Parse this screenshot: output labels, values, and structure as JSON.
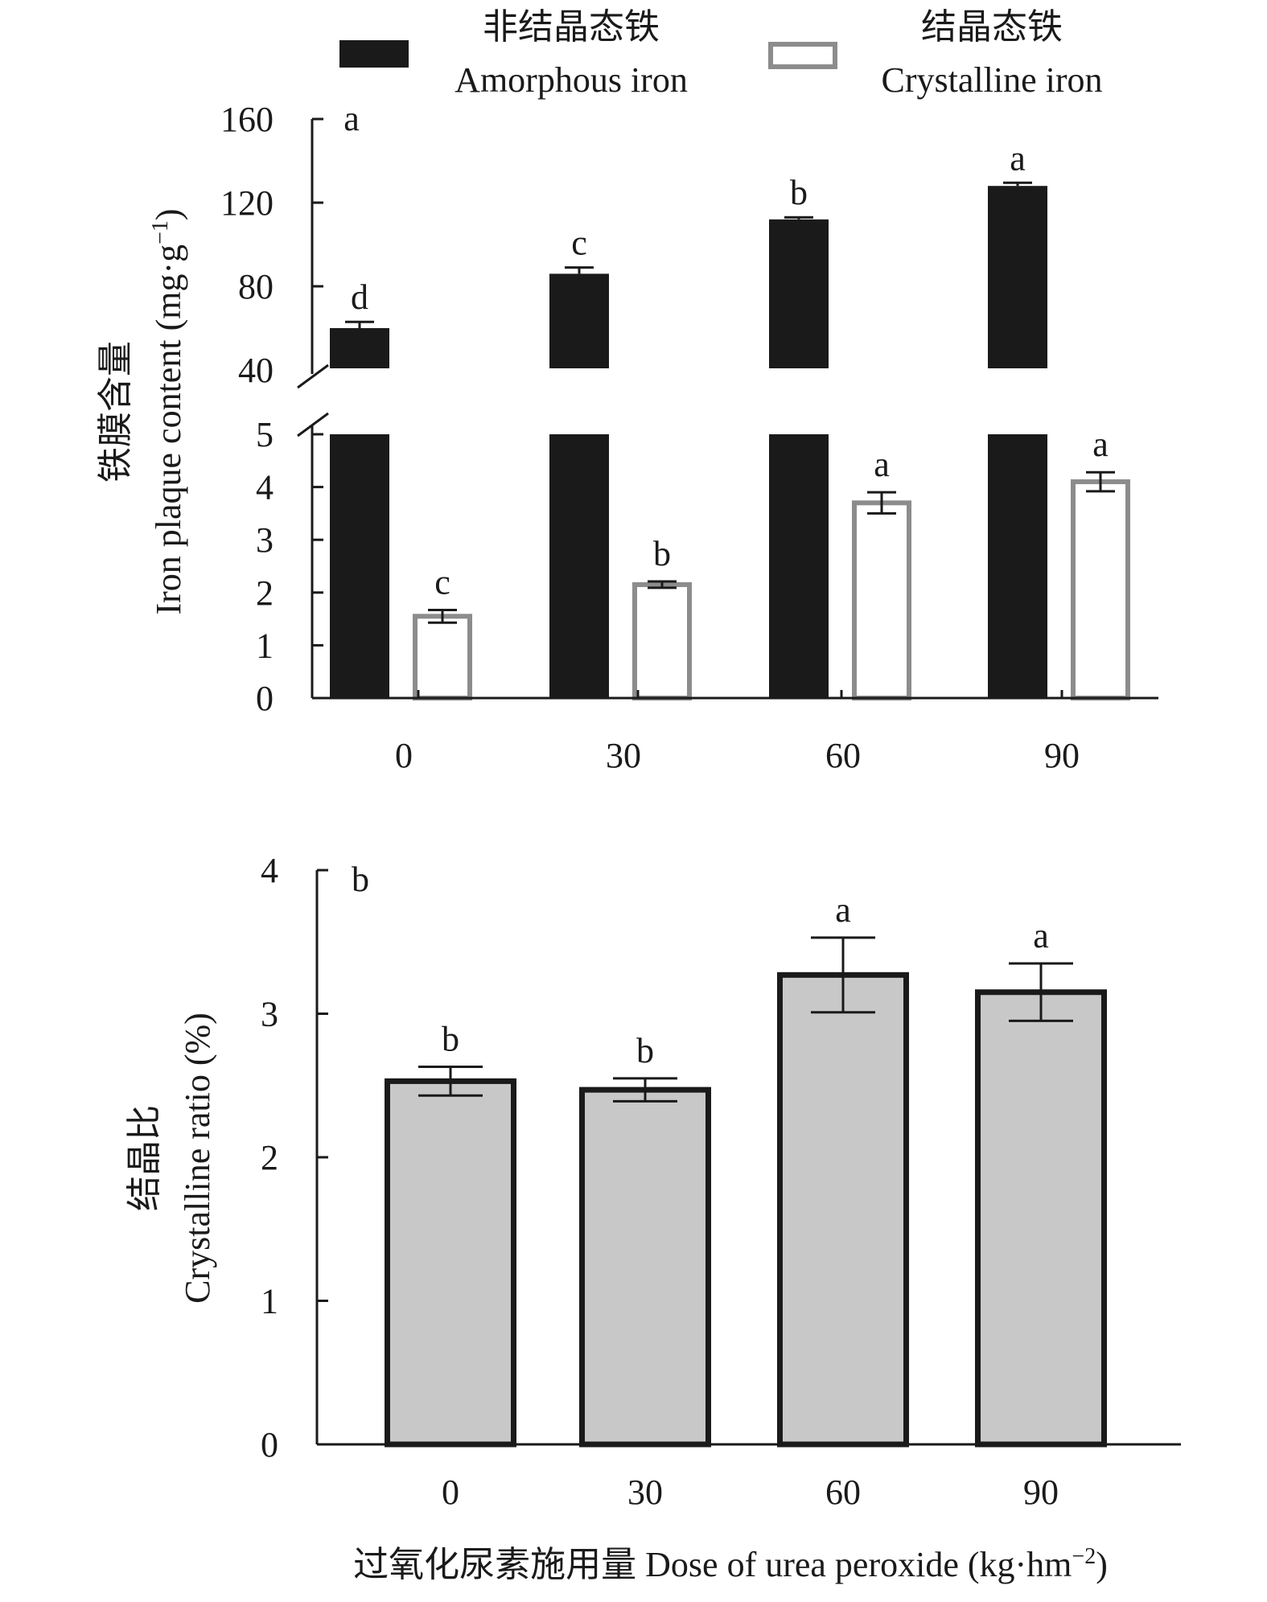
{
  "legend": [
    {
      "name_cn": "非结晶态铁",
      "name_en": "Amorphous iron",
      "fill": "#1a1a1a",
      "stroke": "#1a1a1a"
    },
    {
      "name_cn": "结晶态铁",
      "name_en": "Crystalline iron",
      "fill": "#ffffff",
      "stroke": "#8c8c8c"
    }
  ],
  "chart_data": [
    {
      "type": "bar",
      "panel_label": "a",
      "categories": [
        "0",
        "30",
        "60",
        "90"
      ],
      "ylabel_cn": "铁膜含量",
      "ylabel_en": "Iron plaque content (mg·g",
      "ylabel_sup": "−1",
      "ylabel_close": ")",
      "axis_break": true,
      "upper_ticks": [
        "40",
        "80",
        "120",
        "160"
      ],
      "upper_ylim": [
        40,
        160
      ],
      "lower_ticks": [
        "0",
        "1",
        "2",
        "3",
        "4",
        "5"
      ],
      "lower_ylim": [
        0,
        5
      ],
      "series": [
        {
          "name": "Amorphous iron",
          "values": [
            60,
            86,
            112,
            128
          ],
          "errors": [
            3,
            3,
            1,
            1.5
          ],
          "letters": [
            "d",
            "c",
            "b",
            "a"
          ]
        },
        {
          "name": "Crystalline iron",
          "values": [
            1.55,
            2.15,
            3.7,
            4.1
          ],
          "errors": [
            0.12,
            0.06,
            0.2,
            0.18
          ],
          "letters": [
            "c",
            "b",
            "a",
            "a"
          ]
        }
      ]
    },
    {
      "type": "bar",
      "panel_label": "b",
      "categories": [
        "0",
        "30",
        "60",
        "90"
      ],
      "ylabel_cn": "结晶比",
      "ylabel_en": "Crystalline ratio (%)",
      "yticks": [
        "0",
        "1",
        "2",
        "3",
        "4"
      ],
      "ylim": [
        0,
        4
      ],
      "xlabel": "过氧化尿素施用量 Dose of urea peroxide (kg·hm",
      "xlabel_sup": "−2",
      "xlabel_close": ")",
      "series": [
        {
          "name": "Crystalline ratio",
          "values": [
            2.53,
            2.47,
            3.27,
            3.15
          ],
          "errors": [
            0.1,
            0.08,
            0.26,
            0.2
          ],
          "letters": [
            "b",
            "b",
            "a",
            "a"
          ]
        }
      ]
    }
  ]
}
